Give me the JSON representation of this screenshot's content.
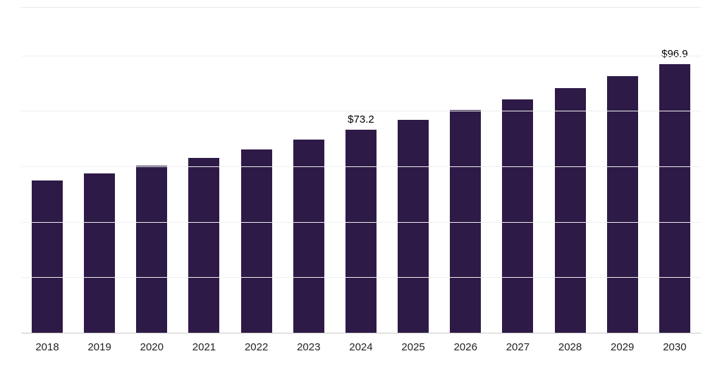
{
  "chart_data": {
    "type": "bar",
    "title": "",
    "xlabel": "",
    "ylabel": "",
    "categories": [
      "2018",
      "2019",
      "2020",
      "2021",
      "2022",
      "2023",
      "2024",
      "2025",
      "2026",
      "2027",
      "2028",
      "2029",
      "2030"
    ],
    "values": [
      54.9,
      57.5,
      60.2,
      63.1,
      66.1,
      69.8,
      73.2,
      76.7,
      80.4,
      84.2,
      88.3,
      92.5,
      96.9
    ],
    "data_labels": [
      "",
      "",
      "",
      "",
      "",
      "",
      "$73.2",
      "",
      "",
      "",
      "",
      "",
      "$96.9"
    ],
    "bar_color": "#2e1a47",
    "ylim": [
      0,
      117.5
    ],
    "grid": "horizontal",
    "gridline_values": [
      20,
      40,
      60,
      80,
      100,
      117.5
    ],
    "legend": "none"
  }
}
